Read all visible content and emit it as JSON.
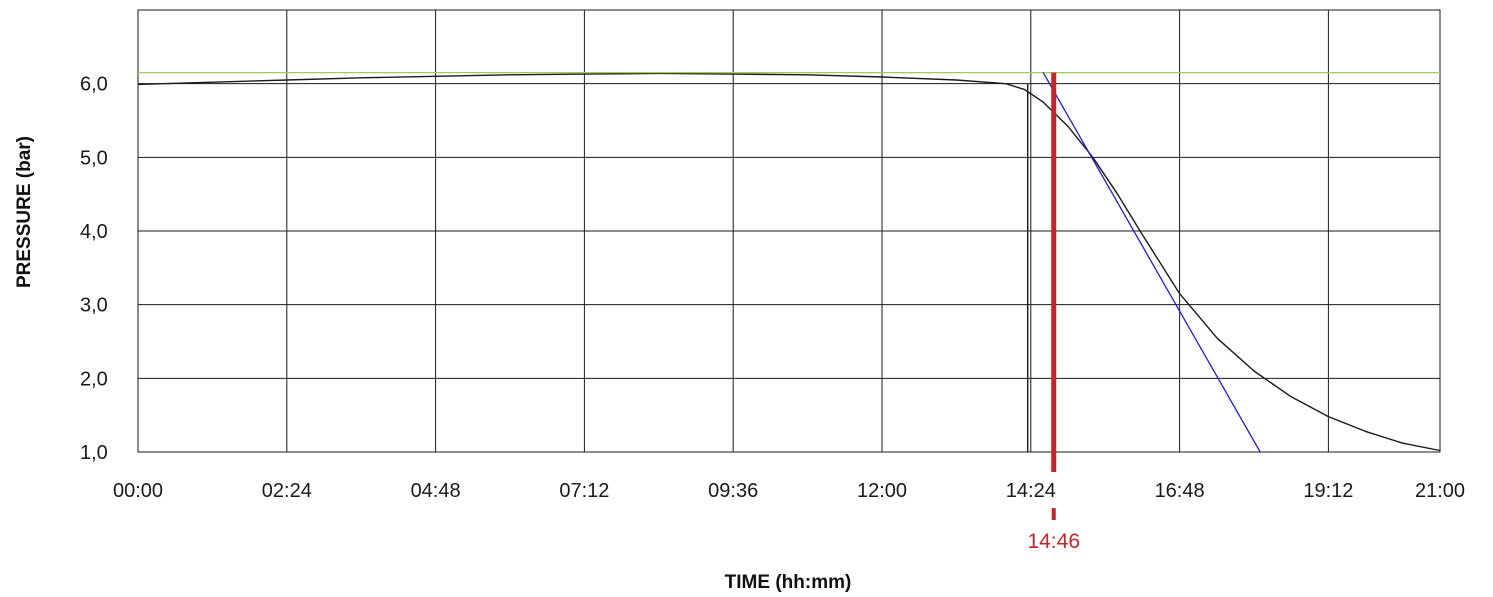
{
  "chart_data": {
    "type": "line",
    "title": "",
    "xlabel": "TIME (hh:mm)",
    "ylabel": "PRESSURE (bar)",
    "x_unit": "hours",
    "xlim": [
      0,
      21
    ],
    "ylim": [
      1.0,
      7.0
    ],
    "grid": true,
    "x_ticks": [
      {
        "value": 0.0,
        "label": "00:00"
      },
      {
        "value": 2.4,
        "label": "02:24"
      },
      {
        "value": 4.8,
        "label": "04:48"
      },
      {
        "value": 7.2,
        "label": "07:12"
      },
      {
        "value": 9.6,
        "label": "09:36"
      },
      {
        "value": 12.0,
        "label": "12:00"
      },
      {
        "value": 14.4,
        "label": "14:24"
      },
      {
        "value": 16.8,
        "label": "16:48"
      },
      {
        "value": 19.2,
        "label": "19:12"
      },
      {
        "value": 21.0,
        "label": "21:00"
      }
    ],
    "y_ticks": [
      {
        "value": 1.0,
        "label": "1,0"
      },
      {
        "value": 2.0,
        "label": "2,0"
      },
      {
        "value": 3.0,
        "label": "3,0"
      },
      {
        "value": 4.0,
        "label": "4,0"
      },
      {
        "value": 5.0,
        "label": "5,0"
      },
      {
        "value": 6.0,
        "label": "6,0"
      }
    ],
    "series": [
      {
        "role": "pressure curve",
        "color": "#1a1a1a",
        "x": [
          0,
          1.2,
          2.4,
          3.6,
          4.8,
          6.0,
          7.2,
          8.4,
          9.6,
          10.8,
          12.0,
          13.2,
          14.0,
          14.3,
          14.6,
          15.0,
          15.4,
          15.8,
          16.2,
          16.8,
          17.4,
          18.0,
          18.6,
          19.2,
          19.8,
          20.4,
          21.0
        ],
        "y": [
          5.99,
          6.02,
          6.05,
          6.08,
          6.1,
          6.12,
          6.13,
          6.14,
          6.13,
          6.12,
          6.09,
          6.05,
          6.0,
          5.92,
          5.75,
          5.42,
          5.0,
          4.5,
          3.95,
          3.15,
          2.55,
          2.1,
          1.75,
          1.48,
          1.28,
          1.12,
          1.02
        ]
      },
      {
        "role": "reference level",
        "color": "#9acd5a",
        "x": [
          0,
          21
        ],
        "y": [
          6.15,
          6.15
        ]
      },
      {
        "role": "tangent",
        "color": "#1f1fdc",
        "x": [
          14.6,
          18.1
        ],
        "y": [
          6.15,
          1.0
        ]
      }
    ],
    "annotations": [
      {
        "type": "vline",
        "x": 14.35,
        "color": "#1a1a1a"
      },
      {
        "type": "vline",
        "x": 14.77,
        "color": "#c0272d",
        "label": "14:46"
      }
    ]
  }
}
